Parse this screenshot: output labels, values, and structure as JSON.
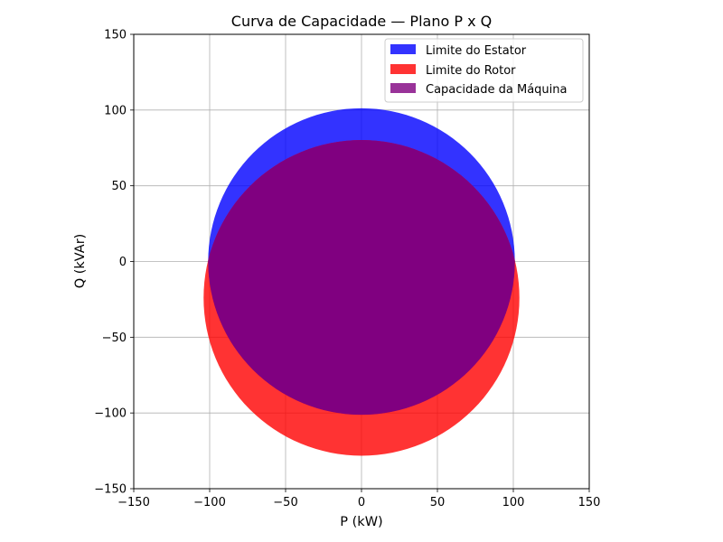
{
  "chart_data": {
    "type": "area",
    "title": "Curva de Capacidade — Plano P x Q",
    "xlabel": "P (kW)",
    "ylabel": "Q (kVAr)",
    "xlim": [
      -150,
      150
    ],
    "ylim": [
      -150,
      150
    ],
    "xticks": [
      -150,
      -100,
      -50,
      0,
      50,
      100,
      150
    ],
    "yticks": [
      -150,
      -100,
      -50,
      0,
      50,
      100,
      150
    ],
    "xtick_labels": [
      "−150",
      "−100",
      "−50",
      "0",
      "50",
      "100",
      "150"
    ],
    "ytick_labels": [
      "−150",
      "−100",
      "−50",
      "0",
      "50",
      "100",
      "150"
    ],
    "grid": true,
    "legend_position": "top-right",
    "series": [
      {
        "name": "Limite do Estator",
        "shape": "circle",
        "center": [
          0,
          0
        ],
        "radius": 101,
        "color": "#0000ff",
        "alpha": 0.8
      },
      {
        "name": "Limite do Rotor",
        "shape": "circle",
        "center": [
          0,
          -24
        ],
        "radius": 104,
        "color": "#ff0000",
        "alpha": 0.8
      },
      {
        "name": "Capacidade da Máquina",
        "shape": "intersection",
        "color": "#800080",
        "alpha": 0.8
      }
    ]
  }
}
